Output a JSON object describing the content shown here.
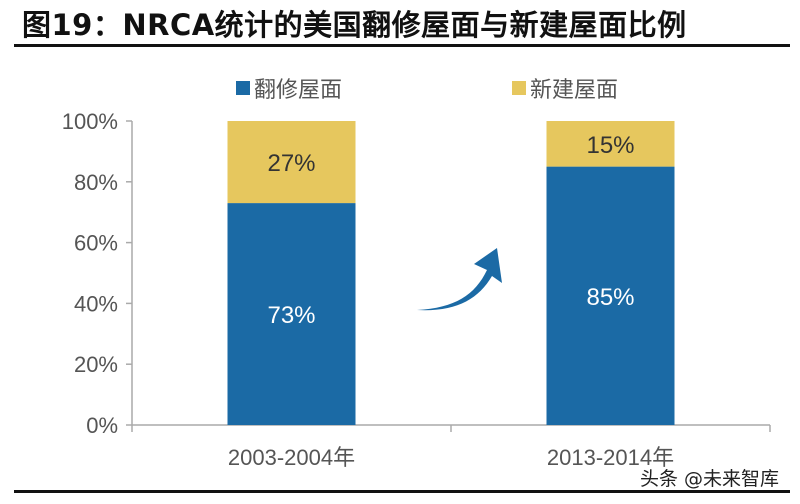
{
  "title": "图19：NRCA统计的美国翻修屋面与新建屋面比例",
  "watermark": "头条 @未来智库",
  "chart_data": {
    "type": "bar",
    "stacked": true,
    "categories": [
      "2003-2004年",
      "2013-2014年"
    ],
    "series": [
      {
        "name": "翻修屋面",
        "values": [
          73,
          85
        ],
        "labels": [
          "73%",
          "85%"
        ],
        "color": "#1B6AA5"
      },
      {
        "name": "新建屋面",
        "values": [
          27,
          15
        ],
        "labels": [
          "27%",
          "15%"
        ],
        "color": "#E6C75E"
      }
    ],
    "ylim": [
      0,
      100
    ],
    "yticks": [
      "0%",
      "20%",
      "40%",
      "60%",
      "80%",
      "100%"
    ],
    "grid": false,
    "legend": "top",
    "annotation": "arrow-up-right-icon"
  }
}
